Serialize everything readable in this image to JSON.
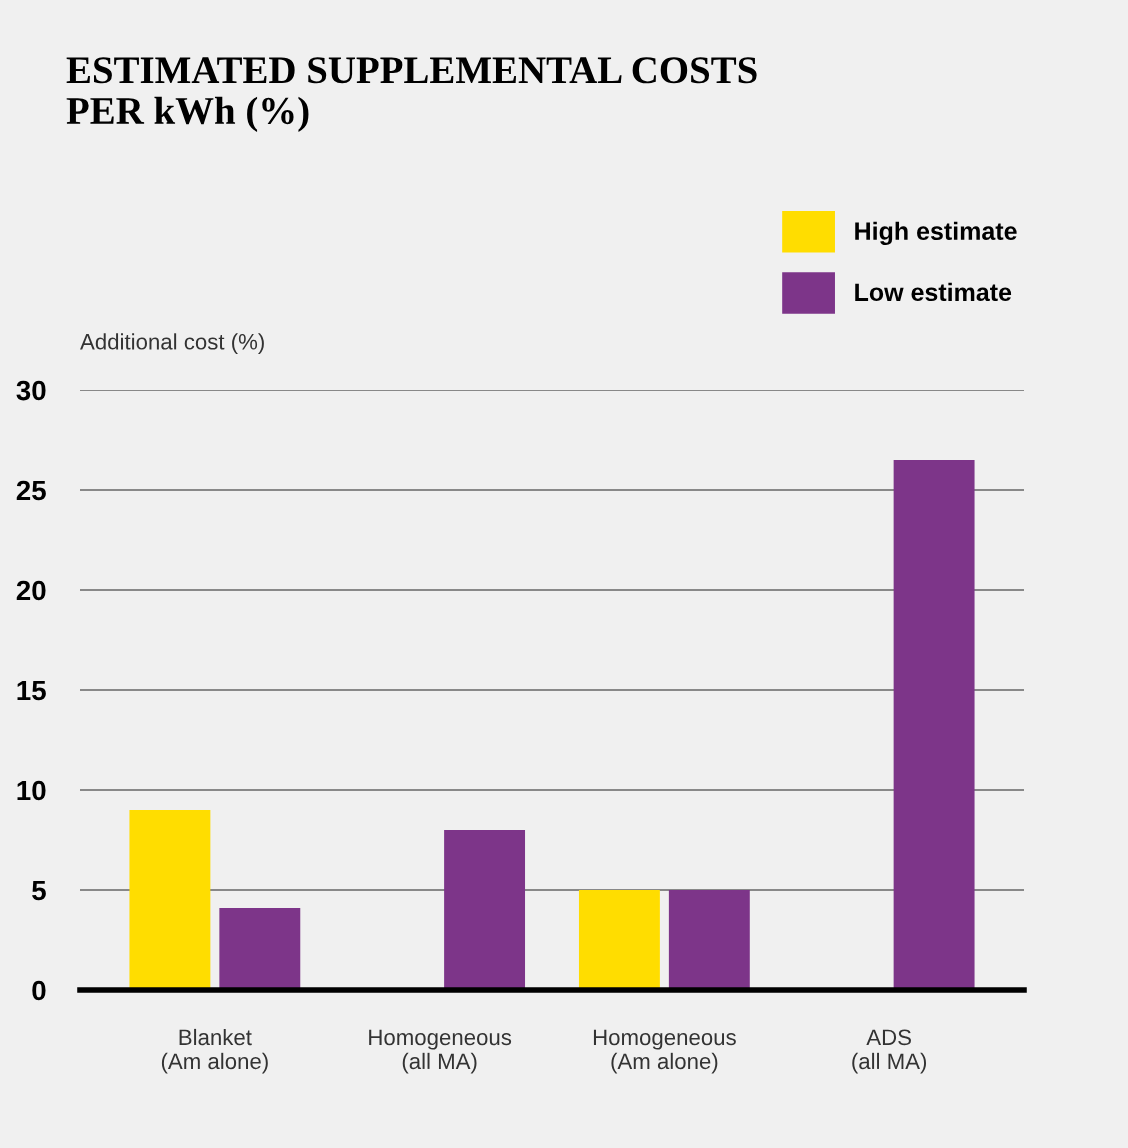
{
  "chart_data": {
    "type": "bar",
    "title": "ESTIMATED SUPPLEMENTAL COSTS\nPER kWh (%)",
    "ylabel": "Additional cost (%)",
    "categories": [
      "Blanket\n(Am alone)",
      "Homogeneous\n(all MA)",
      "Homogeneous\n(Am alone)",
      "ADS\n(all MA)"
    ],
    "series": [
      {
        "name": "High estimate",
        "color": "#ffdd00",
        "values": [
          9,
          null,
          5,
          null
        ]
      },
      {
        "name": "Low estimate",
        "color": "#7d3589",
        "values": [
          4.1,
          8,
          5,
          26.5
        ]
      }
    ],
    "ylim": [
      0,
      30
    ],
    "yticks": [
      0,
      5,
      10,
      15,
      20,
      25,
      30
    ],
    "grid": "y",
    "legend": "top right"
  }
}
